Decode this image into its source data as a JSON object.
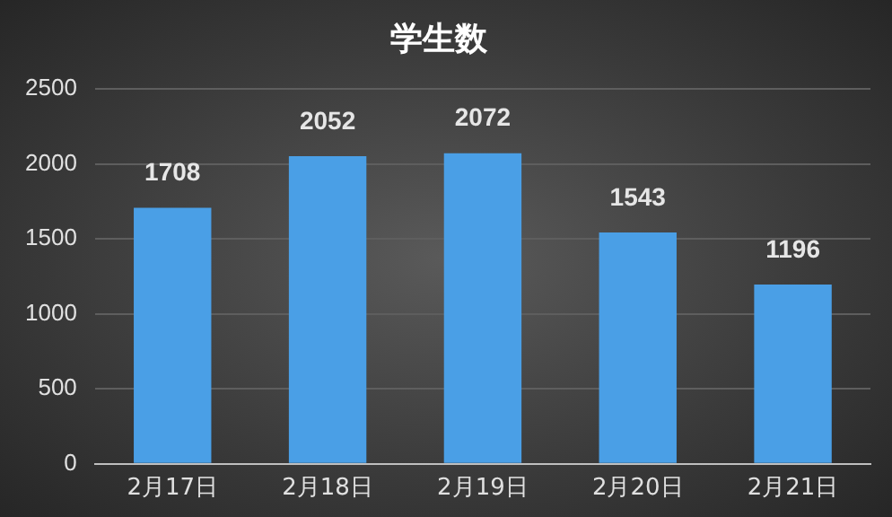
{
  "chart_data": {
    "type": "bar",
    "title": "学生数",
    "categories": [
      "2月17日",
      "2月18日",
      "2月19日",
      "2月20日",
      "2月21日"
    ],
    "values": [
      1708,
      2052,
      2072,
      1543,
      1196
    ],
    "color": "#4a9fe6",
    "ylim": [
      0,
      2500
    ],
    "yticks": [
      0,
      500,
      1000,
      1500,
      2000,
      2500
    ],
    "grid": "y",
    "data_labels": true
  }
}
